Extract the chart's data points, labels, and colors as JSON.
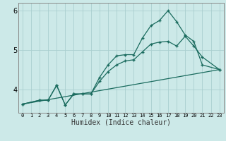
{
  "xlabel": "Humidex (Indice chaleur)",
  "ylabel": "",
  "bg_color": "#cce9e8",
  "line_color": "#1a6b5e",
  "grid_color": "#aacfcf",
  "series1": {
    "points": [
      [
        0,
        3.62
      ],
      [
        2,
        3.72
      ],
      [
        3,
        3.72
      ],
      [
        4,
        4.1
      ],
      [
        5,
        3.6
      ],
      [
        6,
        3.88
      ],
      [
        7,
        3.88
      ],
      [
        8,
        3.88
      ],
      [
        9,
        4.3
      ],
      [
        10,
        4.62
      ],
      [
        11,
        4.85
      ],
      [
        12,
        4.88
      ],
      [
        13,
        4.88
      ],
      [
        14,
        5.3
      ],
      [
        15,
        5.62
      ],
      [
        16,
        5.75
      ],
      [
        17,
        6.0
      ],
      [
        18,
        5.72
      ],
      [
        19,
        5.38
      ],
      [
        20,
        5.22
      ],
      [
        21,
        4.62
      ],
      [
        23,
        4.5
      ]
    ]
  },
  "series2": {
    "points": [
      [
        0,
        3.62
      ],
      [
        2,
        3.72
      ],
      [
        3,
        3.72
      ],
      [
        4,
        4.1
      ],
      [
        5,
        3.6
      ],
      [
        6,
        3.88
      ],
      [
        7,
        3.88
      ],
      [
        8,
        3.88
      ],
      [
        9,
        4.2
      ],
      [
        10,
        4.45
      ],
      [
        11,
        4.62
      ],
      [
        12,
        4.72
      ],
      [
        13,
        4.75
      ],
      [
        14,
        4.95
      ],
      [
        15,
        5.15
      ],
      [
        16,
        5.2
      ],
      [
        17,
        5.22
      ],
      [
        18,
        5.1
      ],
      [
        19,
        5.35
      ],
      [
        20,
        5.1
      ],
      [
        21,
        4.82
      ],
      [
        23,
        4.5
      ]
    ]
  },
  "series3": {
    "points": [
      [
        0,
        3.62
      ],
      [
        23,
        4.5
      ]
    ]
  },
  "xlim": [
    -0.5,
    23.5
  ],
  "ylim": [
    3.4,
    6.2
  ],
  "yticks": [
    4,
    5,
    6
  ],
  "xticks": [
    0,
    1,
    2,
    3,
    4,
    5,
    6,
    7,
    8,
    9,
    10,
    11,
    12,
    13,
    14,
    15,
    16,
    17,
    18,
    19,
    20,
    21,
    22,
    23
  ]
}
